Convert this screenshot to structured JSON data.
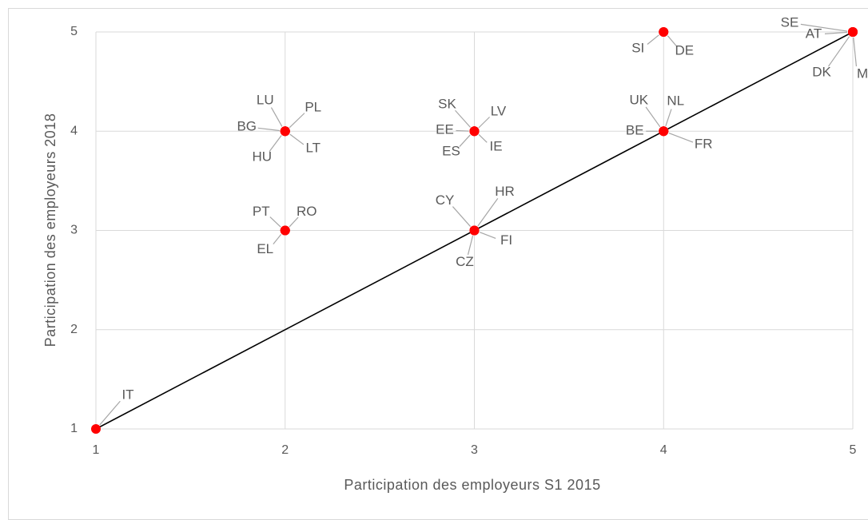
{
  "chart_data": {
    "type": "scatter",
    "xlabel": "Participation des employeurs S1 2015",
    "ylabel": "Participation des employeurs 2018",
    "xlim": [
      1,
      5
    ],
    "ylim": [
      1,
      5
    ],
    "xticks": [
      1,
      2,
      3,
      4,
      5
    ],
    "yticks": [
      1,
      2,
      3,
      4,
      5
    ],
    "grid": true,
    "labels": [
      "IT",
      "LU",
      "PL",
      "BG",
      "HU",
      "LT",
      "PT",
      "RO",
      "EL",
      "SK",
      "LV",
      "EE",
      "ES",
      "IE",
      "CY",
      "HR",
      "FI",
      "CZ",
      "SI",
      "DE",
      "UK",
      "NL",
      "BE",
      "FR",
      "SE",
      "AT",
      "DK",
      "MT"
    ],
    "x": [
      1,
      2,
      2,
      2,
      2,
      2,
      2,
      2,
      2,
      3,
      3,
      3,
      3,
      3,
      3,
      3,
      3,
      3,
      4,
      4,
      4,
      4,
      4,
      4,
      5,
      5,
      5,
      5
    ],
    "series": [
      {
        "color": "#ff0000",
        "values": [
          1,
          4,
          4,
          4,
          4,
          4,
          3,
          3,
          3,
          4,
          4,
          4,
          4,
          4,
          3,
          3,
          3,
          3,
          5,
          5,
          4,
          4,
          4,
          4,
          5,
          5,
          5,
          5
        ]
      }
    ]
  }
}
